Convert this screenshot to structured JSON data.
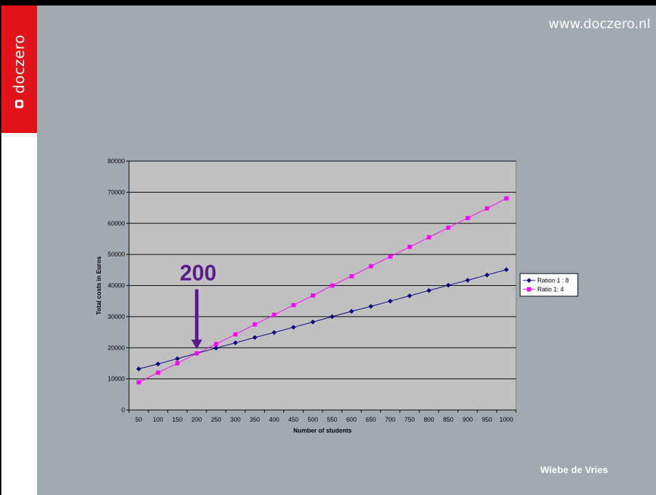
{
  "site": {
    "brand": "doczero",
    "url": "www.doczero.nl",
    "author": "Wiebe de Vries"
  },
  "colors": {
    "brand_red": "#e3131b",
    "background": "#a0aab0",
    "plot_bg": "#c0c0c0",
    "series1": "#000080",
    "series2": "#ff00ff",
    "annotation": "#5a1a8c"
  },
  "chart_data": {
    "type": "line",
    "xlabel": "Number of students",
    "ylabel": "Total costs in Euros",
    "ylim": [
      0,
      80000
    ],
    "yticks": [
      0,
      10000,
      20000,
      30000,
      40000,
      50000,
      60000,
      70000,
      80000
    ],
    "categories": [
      50,
      100,
      150,
      200,
      250,
      300,
      350,
      400,
      450,
      500,
      550,
      600,
      650,
      700,
      750,
      800,
      850,
      900,
      950,
      1000
    ],
    "grid": true,
    "legend": "right",
    "series": [
      {
        "name": "Ration 1 : 8",
        "marker": "diamond",
        "values": [
          13200,
          14800,
          16500,
          18200,
          19900,
          21600,
          23300,
          24900,
          26600,
          28300,
          30000,
          31700,
          33300,
          35000,
          36700,
          38400,
          40100,
          41700,
          43400,
          45100
        ]
      },
      {
        "name": "Ratio 1: 4",
        "marker": "square",
        "values": [
          8900,
          12000,
          15000,
          18200,
          21200,
          24300,
          27500,
          30600,
          33700,
          36800,
          40000,
          43000,
          46200,
          49300,
          52400,
          55500,
          58600,
          61700,
          64800,
          68000
        ]
      }
    ],
    "annotations": [
      {
        "text": "200",
        "x": 200,
        "arrow_to_y": 18200
      }
    ]
  }
}
